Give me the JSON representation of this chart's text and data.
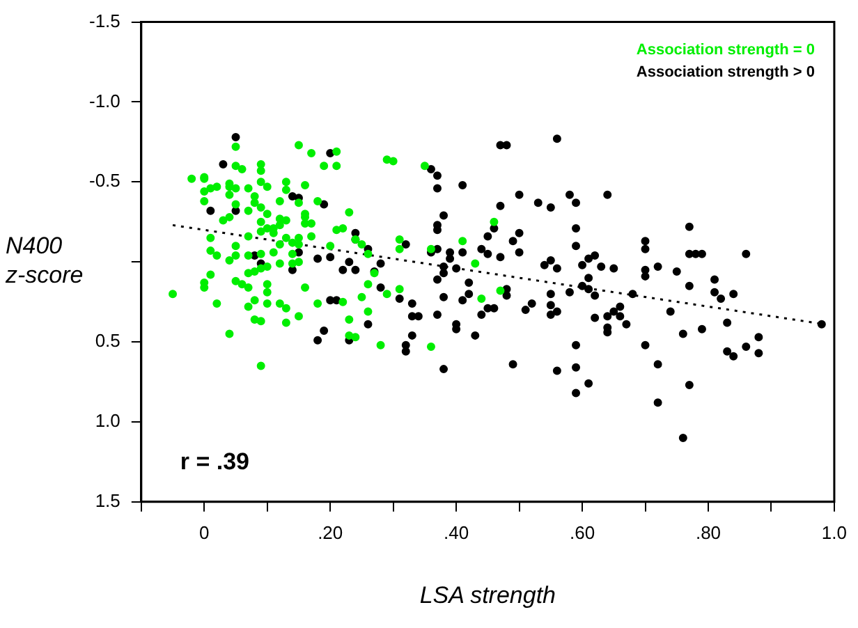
{
  "chart_data": {
    "type": "scatter",
    "xlabel": "LSA strength",
    "ylabel": "N400 z-score",
    "annotations": [
      "r = .39"
    ],
    "xlim": [
      -0.1,
      1.0
    ],
    "xticks": [
      {
        "value": -0.1,
        "label": null
      },
      {
        "value": 0,
        "label": "0"
      },
      {
        "value": 0.1,
        "label": null
      },
      {
        "value": 0.2,
        "label": ".20"
      },
      {
        "value": 0.3,
        "label": null
      },
      {
        "value": 0.4,
        "label": ".40"
      },
      {
        "value": 0.5,
        "label": null
      },
      {
        "value": 0.6,
        "label": ".60"
      },
      {
        "value": 0.7,
        "label": null
      },
      {
        "value": 0.8,
        "label": ".80"
      },
      {
        "value": 0.9,
        "label": null
      },
      {
        "value": 1.0,
        "label": "1.0"
      }
    ],
    "ylim": [
      1.5,
      -1.5
    ],
    "yticks": [
      -1.5,
      {
        "value": -1.0,
        "label": "-1.0"
      },
      -0.5,
      {
        "value": 0,
        "label": null
      },
      0.5,
      {
        "value": 1.0,
        "label": "1.0"
      },
      1.5
    ],
    "grid": false,
    "legend": "top right",
    "marker": "circle",
    "series": [
      {
        "name": "Association strength = 0",
        "color": "#00ee00",
        "x": [
          0.05,
          0.15,
          0.17,
          0.21,
          0.19,
          0.21,
          0.05,
          0.06,
          0.09,
          0.09,
          -0.02,
          0.0,
          0.0,
          0.0,
          0.01,
          0.02,
          0.04,
          0.04,
          0.05,
          0.07,
          0.09,
          0.1,
          0.13,
          0.13,
          0.16,
          0.0,
          0.04,
          0.08,
          0.08,
          0.05,
          0.09,
          0.12,
          0.15,
          0.18,
          0.07,
          0.1,
          0.04,
          0.03,
          0.09,
          0.12,
          0.13,
          0.16,
          0.16,
          0.17,
          0.16,
          0.12,
          0.11,
          0.11,
          0.1,
          0.09,
          0.21,
          0.22,
          0.23,
          0.07,
          0.01,
          0.13,
          0.15,
          0.17,
          0.12,
          0.2,
          0.24,
          0.25,
          0.01,
          0.02,
          0.05,
          0.05,
          0.04,
          0.07,
          0.09,
          0.11,
          0.09,
          0.08,
          0.07,
          0.1,
          0.12,
          0.14,
          0.15,
          0.14,
          0.15,
          0.14,
          0.01,
          0.0,
          0.0,
          0.05,
          0.06,
          0.07,
          0.1,
          0.1,
          0.16,
          -0.05,
          0.02,
          0.08,
          0.07,
          0.1,
          0.12,
          0.13,
          0.18,
          0.22,
          0.25,
          0.08,
          0.09,
          0.13,
          0.15,
          0.23,
          0.04,
          0.23,
          0.24,
          0.09,
          0.29,
          0.3,
          0.35,
          0.46,
          0.41,
          0.43,
          0.47,
          0.44,
          0.31,
          0.31,
          0.36,
          0.26,
          0.27,
          0.26,
          0.26,
          0.29,
          0.31,
          0.28,
          0.36
        ],
        "values": [
          -0.72,
          -0.73,
          -0.68,
          -0.69,
          -0.6,
          -0.6,
          -0.6,
          -0.58,
          -0.61,
          -0.57,
          -0.52,
          -0.53,
          -0.52,
          -0.44,
          -0.46,
          -0.47,
          -0.49,
          -0.47,
          -0.46,
          -0.46,
          -0.5,
          -0.47,
          -0.5,
          -0.45,
          -0.48,
          -0.38,
          -0.42,
          -0.41,
          -0.37,
          -0.36,
          -0.34,
          -0.38,
          -0.37,
          -0.38,
          -0.32,
          -0.3,
          -0.28,
          -0.26,
          -0.25,
          -0.27,
          -0.26,
          -0.3,
          -0.28,
          -0.24,
          -0.24,
          -0.23,
          -0.21,
          -0.18,
          -0.21,
          -0.19,
          -0.2,
          -0.21,
          -0.31,
          -0.16,
          -0.15,
          -0.15,
          -0.15,
          -0.16,
          -0.11,
          -0.1,
          -0.14,
          -0.11,
          -0.07,
          -0.04,
          -0.1,
          -0.04,
          -0.01,
          -0.04,
          -0.05,
          -0.06,
          0.04,
          0.06,
          0.07,
          0.03,
          0.01,
          0.01,
          0.0,
          -0.05,
          -0.11,
          -0.12,
          0.08,
          0.13,
          0.16,
          0.12,
          0.14,
          0.16,
          0.14,
          0.19,
          0.16,
          0.2,
          0.26,
          0.24,
          0.28,
          0.26,
          0.26,
          0.29,
          0.26,
          0.25,
          0.22,
          0.36,
          0.37,
          0.38,
          0.34,
          0.36,
          0.45,
          0.46,
          0.47,
          0.65,
          -0.64,
          -0.63,
          -0.6,
          -0.25,
          -0.13,
          0.01,
          0.18,
          0.23,
          -0.14,
          -0.08,
          -0.08,
          -0.05,
          0.07,
          0.14,
          0.31,
          0.2,
          0.17,
          0.52,
          0.53
        ]
      },
      {
        "name": "Association strength > 0",
        "color": "#000000",
        "x": [
          0.05,
          0.2,
          0.03,
          0.14,
          0.15,
          0.19,
          0.01,
          0.05,
          0.24,
          0.24,
          0.15,
          0.08,
          0.09,
          0.14,
          0.18,
          0.2,
          0.23,
          0.22,
          0.24,
          0.2,
          0.21,
          0.19,
          0.18,
          0.23,
          0.36,
          0.37,
          0.37,
          0.41,
          0.38,
          0.37,
          0.37,
          0.47,
          0.48,
          0.56,
          0.47,
          0.5,
          0.53,
          0.55,
          0.58,
          0.59,
          0.59,
          0.59,
          0.46,
          0.45,
          0.5,
          0.49,
          0.5,
          0.47,
          0.44,
          0.45,
          0.39,
          0.39,
          0.38,
          0.38,
          0.4,
          0.41,
          0.36,
          0.37,
          0.32,
          0.26,
          0.27,
          0.28,
          0.37,
          0.42,
          0.48,
          0.48,
          0.42,
          0.41,
          0.38,
          0.33,
          0.33,
          0.34,
          0.37,
          0.26,
          0.28,
          0.31,
          0.45,
          0.46,
          0.44,
          0.51,
          0.52,
          0.55,
          0.55,
          0.55,
          0.56,
          0.58,
          0.54,
          0.55,
          0.56,
          0.6,
          0.61,
          0.62,
          0.61,
          0.6,
          0.61,
          0.62,
          0.62,
          0.4,
          0.4,
          0.43,
          0.33,
          0.32,
          0.32,
          0.38,
          0.49,
          0.56,
          0.59,
          0.59,
          0.61,
          0.59,
          0.64,
          0.77,
          0.7,
          0.7,
          0.63,
          0.65,
          0.7,
          0.7,
          0.72,
          0.75,
          0.77,
          0.78,
          0.79,
          0.86,
          0.81,
          0.81,
          0.82,
          0.84,
          0.77,
          0.68,
          0.66,
          0.65,
          0.66,
          0.64,
          0.64,
          0.64,
          0.67,
          0.74,
          0.79,
          0.76,
          0.83,
          0.88,
          0.86,
          0.83,
          0.84,
          0.88,
          0.7,
          0.72,
          0.77,
          0.72,
          0.76,
          0.98
        ],
        "values": [
          -0.78,
          -0.68,
          -0.61,
          -0.41,
          -0.4,
          -0.36,
          -0.32,
          -0.32,
          -0.18,
          -0.14,
          -0.06,
          -0.04,
          0.01,
          0.05,
          -0.02,
          -0.03,
          0.0,
          0.05,
          0.05,
          0.24,
          0.24,
          0.43,
          0.49,
          0.49,
          -0.58,
          -0.54,
          -0.46,
          -0.48,
          -0.29,
          -0.23,
          -0.2,
          -0.73,
          -0.73,
          -0.77,
          -0.35,
          -0.42,
          -0.37,
          -0.34,
          -0.42,
          -0.37,
          -0.21,
          -0.1,
          -0.21,
          -0.16,
          -0.18,
          -0.13,
          -0.06,
          -0.03,
          -0.08,
          -0.05,
          -0.06,
          -0.02,
          0.03,
          0.07,
          0.04,
          -0.06,
          -0.06,
          -0.08,
          -0.11,
          -0.08,
          0.06,
          0.01,
          0.11,
          0.13,
          0.17,
          0.21,
          0.2,
          0.24,
          0.22,
          0.26,
          0.34,
          0.34,
          0.33,
          0.39,
          0.16,
          0.23,
          0.29,
          0.29,
          0.33,
          0.3,
          0.26,
          0.2,
          0.27,
          0.33,
          0.31,
          0.19,
          0.02,
          -0.01,
          0.04,
          0.02,
          -0.02,
          -0.04,
          0.1,
          0.15,
          0.17,
          0.21,
          0.35,
          0.39,
          0.42,
          0.46,
          0.46,
          0.52,
          0.56,
          0.67,
          0.64,
          0.68,
          0.52,
          0.66,
          0.76,
          0.82,
          -0.42,
          -0.22,
          -0.13,
          -0.08,
          0.03,
          0.04,
          0.05,
          0.09,
          0.03,
          0.06,
          -0.05,
          -0.05,
          -0.05,
          -0.05,
          0.11,
          0.19,
          0.23,
          0.2,
          0.15,
          0.2,
          0.28,
          0.31,
          0.34,
          0.34,
          0.41,
          0.44,
          0.39,
          0.31,
          0.42,
          0.45,
          0.38,
          0.47,
          0.53,
          0.56,
          0.59,
          0.57,
          0.52,
          0.64,
          0.77,
          0.88,
          1.1,
          0.39
        ]
      },
      {
        "type": "line",
        "color": "#000000",
        "line_style": "dotted",
        "marker": "none",
        "x": [
          -0.05,
          0.985
        ],
        "values": [
          -0.23,
          0.39
        ]
      }
    ]
  }
}
